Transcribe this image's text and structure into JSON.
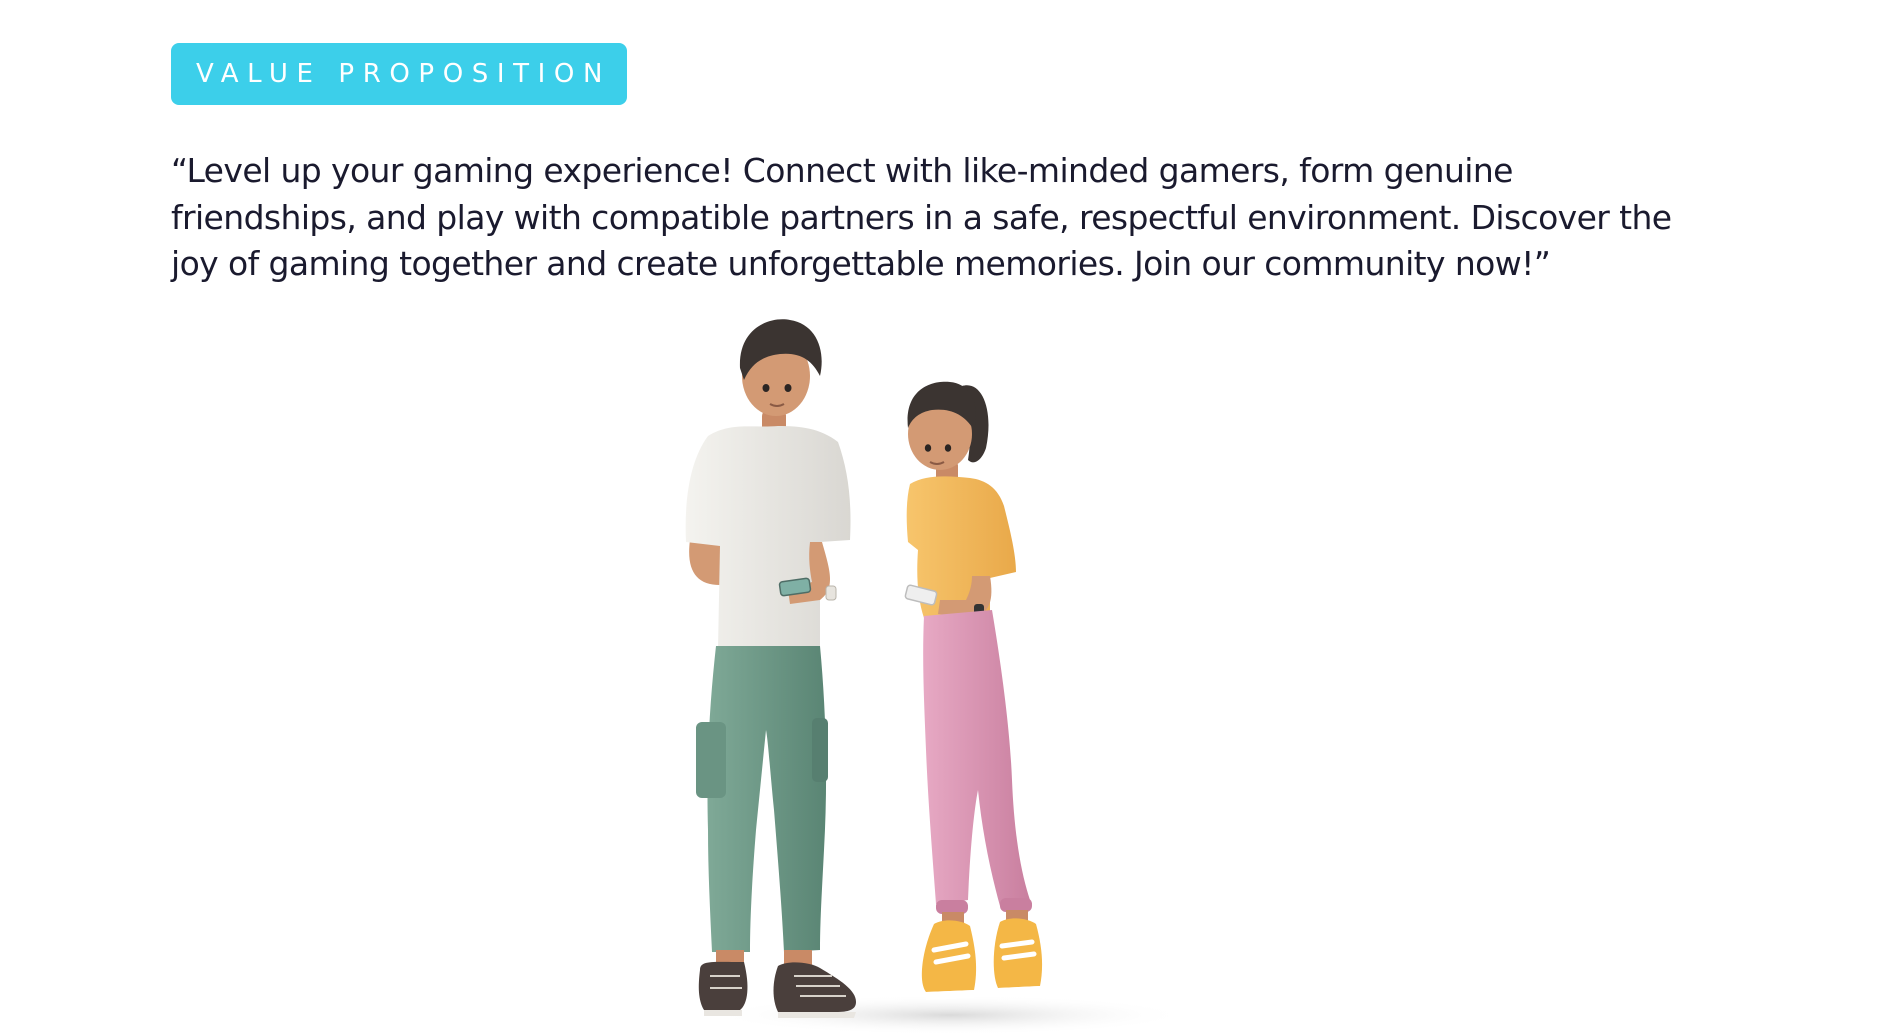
{
  "badge": {
    "label": "VALUE PROPOSITION"
  },
  "quote": {
    "lines": [
      "“Level up your gaming experience! Connect with like-minded gamers, form genuine",
      "friendships, and play with compatible partners in a safe, respectful environment. Discover the",
      "joy of gaming together and create unforgettable memories. Join our community now!”"
    ]
  },
  "colors": {
    "badge_background": "#3ccfea",
    "text": "#1a1a2e",
    "man_shirt": "#ecebe7",
    "man_pants": "#6e9a88",
    "woman_shirt": "#f4b95a",
    "woman_pants": "#de9ab8"
  }
}
